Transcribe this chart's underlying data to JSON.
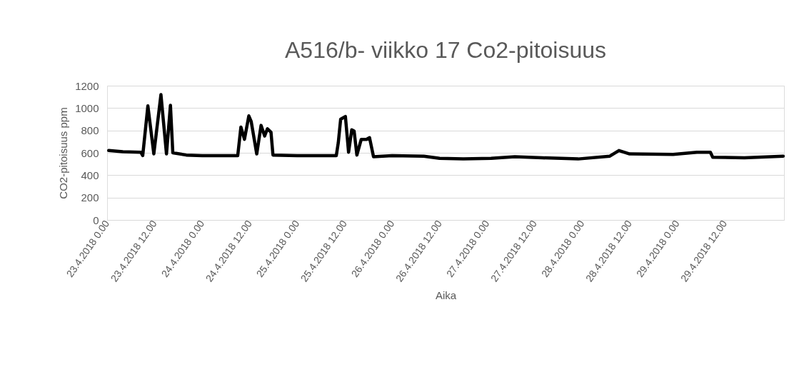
{
  "chart_data": {
    "type": "line",
    "title": "A516/b- viikko 17 Co2-pitoisuus",
    "xlabel": "Aika",
    "ylabel": "CO2-pitoisuus ppm",
    "series": [
      {
        "color": "#000000",
        "x": [
          "2018-04-23T00:24",
          "2018-04-23T04:00",
          "2018-04-23T08:30",
          "2018-04-23T09:00",
          "2018-04-23T10:18",
          "2018-04-23T11:48",
          "2018-04-23T13:36",
          "2018-04-23T15:00",
          "2018-04-23T16:00",
          "2018-04-23T16:36",
          "2018-04-23T20:00",
          "2018-04-24T00:00",
          "2018-04-24T09:00",
          "2018-04-24T09:48",
          "2018-04-24T10:42",
          "2018-04-24T11:48",
          "2018-04-24T12:24",
          "2018-04-24T13:48",
          "2018-04-24T14:54",
          "2018-04-24T15:48",
          "2018-04-24T16:30",
          "2018-04-24T17:24",
          "2018-04-24T17:54",
          "2018-04-25T00:00",
          "2018-04-25T09:54",
          "2018-04-25T10:24",
          "2018-04-25T11:00",
          "2018-04-25T12:12",
          "2018-04-25T13:00",
          "2018-04-25T13:48",
          "2018-04-25T14:24",
          "2018-04-25T15:06",
          "2018-04-25T16:12",
          "2018-04-25T17:30",
          "2018-04-25T18:18",
          "2018-04-25T19:18",
          "2018-04-26T00:00",
          "2018-04-26T08:00",
          "2018-04-26T12:00",
          "2018-04-26T18:00",
          "2018-04-27T01:00",
          "2018-04-27T07:00",
          "2018-04-27T14:00",
          "2018-04-27T23:00",
          "2018-04-28T07:00",
          "2018-04-28T09:18",
          "2018-04-28T12:00",
          "2018-04-28T23:00",
          "2018-04-29T05:00",
          "2018-04-29T08:24",
          "2018-04-29T09:00",
          "2018-04-29T17:00",
          "2018-04-30T02:48"
        ],
        "values": [
          620,
          610,
          605,
          575,
          1020,
          590,
          1120,
          590,
          1025,
          600,
          580,
          575,
          575,
          830,
          720,
          930,
          880,
          590,
          845,
          750,
          815,
          785,
          580,
          575,
          575,
          690,
          900,
          925,
          605,
          805,
          795,
          580,
          720,
          720,
          735,
          565,
          575,
          570,
          550,
          545,
          550,
          565,
          555,
          545,
          570,
          620,
          590,
          585,
          605,
          605,
          560,
          555,
          570
        ]
      }
    ],
    "xlim": [
      "2018-04-23T00:00",
      "2018-04-30T03:00"
    ],
    "xticks": [
      {
        "value": "2018-04-23T00:00",
        "label": "23.4.2018 0.00"
      },
      {
        "value": "2018-04-23T12:00",
        "label": "23.4.2018 12.00"
      },
      {
        "value": "2018-04-24T00:00",
        "label": "24.4.2018 0.00"
      },
      {
        "value": "2018-04-24T12:00",
        "label": "24.4.2018 12.00"
      },
      {
        "value": "2018-04-25T00:00",
        "label": "25.4.2018 0.00"
      },
      {
        "value": "2018-04-25T12:00",
        "label": "25.4.2018 12.00"
      },
      {
        "value": "2018-04-26T00:00",
        "label": "26.4.2018 0.00"
      },
      {
        "value": "2018-04-26T12:00",
        "label": "26.4.2018 12.00"
      },
      {
        "value": "2018-04-27T00:00",
        "label": "27.4.2018 0.00"
      },
      {
        "value": "2018-04-27T12:00",
        "label": "27.4.2018 12.00"
      },
      {
        "value": "2018-04-28T00:00",
        "label": "28.4.2018 0.00"
      },
      {
        "value": "2018-04-28T12:00",
        "label": "28.4.2018 12.00"
      },
      {
        "value": "2018-04-29T00:00",
        "label": "29.4.2018 0.00"
      },
      {
        "value": "2018-04-29T12:00",
        "label": "29.4.2018 12.00"
      }
    ],
    "ylim": [
      0,
      1200
    ],
    "yticks": [
      0,
      200,
      400,
      600,
      800,
      1000,
      1200
    ],
    "grid": "y",
    "legend": false,
    "marker": "none",
    "line_style": "solid"
  }
}
